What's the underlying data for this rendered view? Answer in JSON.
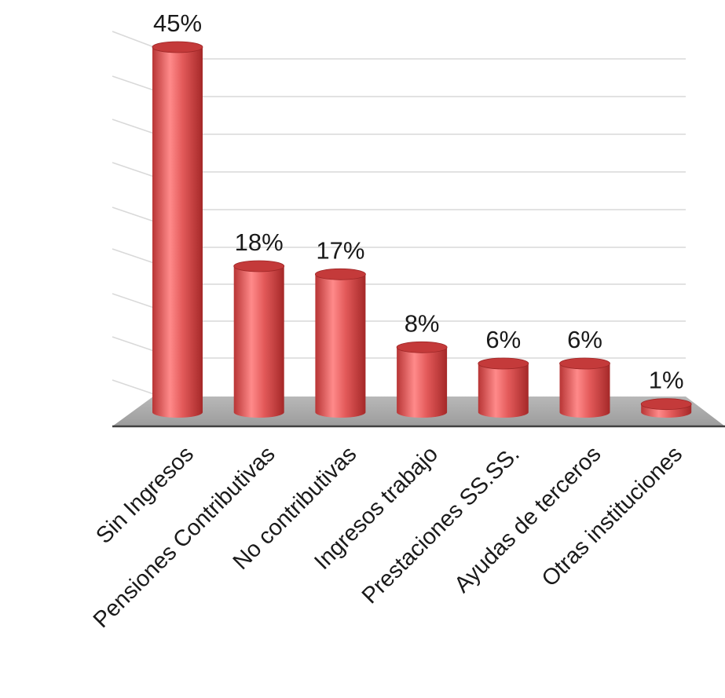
{
  "chart_data": {
    "type": "bar",
    "style": "3d-cylinder",
    "categories": [
      "Sin Ingresos",
      "Pensiones Contributivas",
      "No contributivas",
      "Ingresos trabajo",
      "Prestaciones SS.SS.",
      "Ayudas de terceros",
      "Otras instituciones"
    ],
    "values": [
      45,
      18,
      17,
      8,
      6,
      6,
      1
    ],
    "data_labels": [
      "45%",
      "18%",
      "17%",
      "8%",
      "6%",
      "6%",
      "1%"
    ],
    "unit": "%",
    "ylim": [
      0,
      45
    ],
    "grid": true,
    "legend": "none",
    "colors": {
      "bar": "#d24a4a",
      "bar_light": "#ff8a8a",
      "bar_dark": "#a82a2a",
      "bar_top": "#c43a3a",
      "floor": "#a6a6a6",
      "floor_light": "#c9c9c9",
      "gridline": "#d9d9d9",
      "axis": "#404040",
      "text": "#1a1a1a"
    }
  }
}
